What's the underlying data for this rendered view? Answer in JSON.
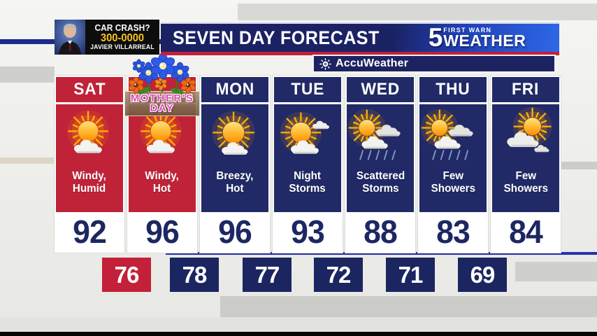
{
  "ad": {
    "headline": "CAR CRASH?",
    "phone": "300-0000",
    "name": "JAVIER VILLARREAL"
  },
  "header": {
    "title": "SEVEN DAY FORECAST",
    "station_number": "5",
    "station_tagline": "FIRST WARN",
    "station_name": "WEATHER"
  },
  "provider": {
    "name": "AccuWeather"
  },
  "special_day": {
    "line1": "MOTHER'S",
    "line2": "DAY"
  },
  "forecast": {
    "days": [
      {
        "id": "sat",
        "label": "SAT",
        "theme": "red",
        "icon": "partly-sunny",
        "condition": [
          "Windy,",
          "Humid"
        ],
        "high": "92",
        "special": false
      },
      {
        "id": "sun",
        "label": "",
        "theme": "red",
        "icon": "partly-sunny",
        "condition": [
          "Windy,",
          "Hot"
        ],
        "high": "96",
        "special": true
      },
      {
        "id": "mon",
        "label": "MON",
        "theme": "navy",
        "icon": "mostly-sunny",
        "condition": [
          "Breezy,",
          "Hot"
        ],
        "high": "96",
        "special": false
      },
      {
        "id": "tue",
        "label": "TUE",
        "theme": "navy",
        "icon": "sun-clouds",
        "condition": [
          "Night",
          "Storms"
        ],
        "high": "93",
        "special": false
      },
      {
        "id": "wed",
        "label": "WED",
        "theme": "navy",
        "icon": "storms",
        "condition": [
          "Scattered",
          "Storms"
        ],
        "high": "88",
        "special": false
      },
      {
        "id": "thu",
        "label": "THU",
        "theme": "navy",
        "icon": "showers",
        "condition": [
          "Few",
          "Showers"
        ],
        "high": "83",
        "special": false
      },
      {
        "id": "fri",
        "label": "FRI",
        "theme": "navy",
        "icon": "mostly-cloudy",
        "condition": [
          "Few",
          "Showers"
        ],
        "high": "84",
        "special": false
      }
    ],
    "lows": [
      {
        "value": "76",
        "theme": "red"
      },
      {
        "value": "78",
        "theme": "navy"
      },
      {
        "value": "77",
        "theme": "navy"
      },
      {
        "value": "72",
        "theme": "navy"
      },
      {
        "value": "71",
        "theme": "navy"
      },
      {
        "value": "69",
        "theme": "navy"
      }
    ]
  },
  "colors": {
    "column_red": "#c02338",
    "column_navy": "#212a66",
    "high_temp_text": "#1d2763",
    "banner_navy": "#1b2264",
    "accent_red_line": "#c31f3a",
    "phone_yellow": "#f7c41e",
    "low_red": "#c32039",
    "low_navy": "#1b2560"
  }
}
